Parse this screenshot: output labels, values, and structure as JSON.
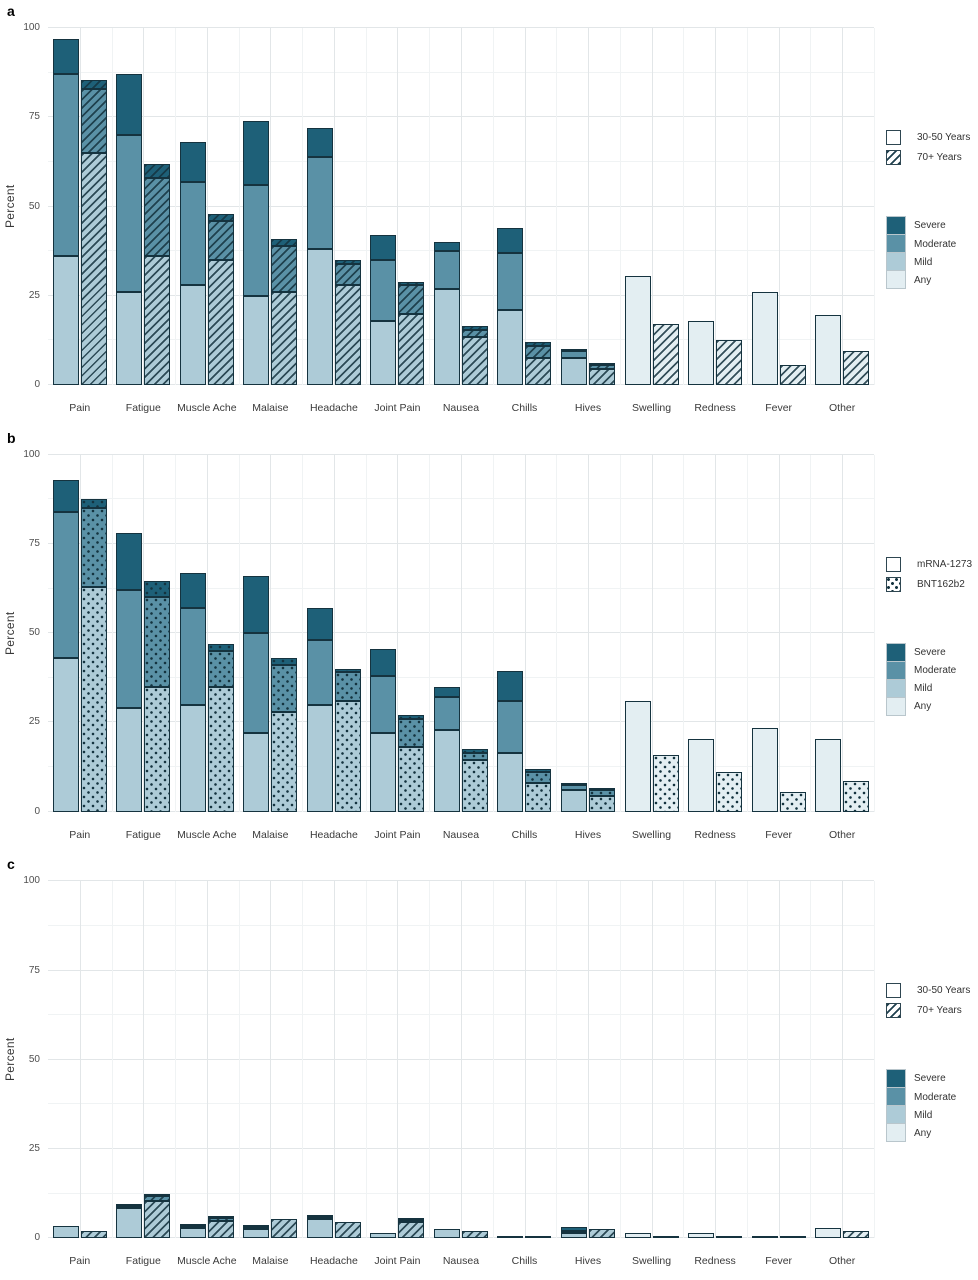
{
  "figure": {
    "colors": {
      "severe": "#1e6078",
      "moderate": "#5a91a6",
      "mild": "#adcbd7",
      "any": "#e3eef2",
      "outline": "#15333f",
      "grid_major": "#e2e6e8",
      "grid_minor": "#f0f3f4"
    }
  },
  "chart_data": [
    {
      "panel": "a",
      "type": "bar",
      "stacked": true,
      "title": "",
      "xlabel": "",
      "ylabel": "Percent",
      "ylim": [
        0,
        100
      ],
      "yticks": [
        0,
        25,
        50,
        75,
        100
      ],
      "grid": true,
      "legend_position": "right",
      "categories": [
        "Pain",
        "Fatigue",
        "Muscle Ache",
        "Malaise",
        "Headache",
        "Joint Pain",
        "Nausea",
        "Chills",
        "Hives",
        "Swelling",
        "Redness",
        "Fever",
        "Other"
      ],
      "severity_levels": [
        {
          "label": "Severe",
          "key": "severe"
        },
        {
          "label": "Moderate",
          "key": "moderate"
        },
        {
          "label": "Mild",
          "key": "mild"
        },
        {
          "label": "Any",
          "key": "any"
        }
      ],
      "series": [
        {
          "name": "30-50 Years",
          "pattern": "plain",
          "bars": [
            {
              "mild": 36,
              "moderate": 87,
              "severe": 97
            },
            {
              "mild": 26,
              "moderate": 70,
              "severe": 87
            },
            {
              "mild": 28,
              "moderate": 57,
              "severe": 68
            },
            {
              "mild": 25,
              "moderate": 56,
              "severe": 74
            },
            {
              "mild": 38,
              "moderate": 64,
              "severe": 72
            },
            {
              "mild": 18,
              "moderate": 35,
              "severe": 42
            },
            {
              "mild": 27,
              "moderate": 37.5,
              "severe": 40
            },
            {
              "mild": 21,
              "moderate": 37,
              "severe": 44
            },
            {
              "mild": 7.5,
              "moderate": 9.5,
              "severe": 10
            },
            {
              "any": 30.5
            },
            {
              "any": 18
            },
            {
              "any": 26
            },
            {
              "any": 19.5
            }
          ]
        },
        {
          "name": "70+ Years",
          "pattern": "hatch",
          "bars": [
            {
              "mild": 65,
              "moderate": 83,
              "severe": 85.5
            },
            {
              "mild": 36,
              "moderate": 58,
              "severe": 62
            },
            {
              "mild": 35,
              "moderate": 46,
              "severe": 48
            },
            {
              "mild": 26,
              "moderate": 39,
              "severe": 41
            },
            {
              "mild": 28,
              "moderate": 34,
              "severe": 35
            },
            {
              "mild": 20,
              "moderate": 28,
              "severe": 29
            },
            {
              "mild": 13.5,
              "moderate": 15.5,
              "severe": 16.5
            },
            {
              "mild": 7.5,
              "moderate": 11,
              "severe": 12
            },
            {
              "mild": 4.5,
              "moderate": 5.5,
              "severe": 6
            },
            {
              "any": 17
            },
            {
              "any": 12.5
            },
            {
              "any": 5.5
            },
            {
              "any": 9.5
            }
          ]
        }
      ]
    },
    {
      "panel": "b",
      "type": "bar",
      "stacked": true,
      "title": "",
      "xlabel": "",
      "ylabel": "Percent",
      "ylim": [
        0,
        100
      ],
      "yticks": [
        0,
        25,
        50,
        75,
        100
      ],
      "grid": true,
      "legend_position": "right",
      "categories": [
        "Pain",
        "Fatigue",
        "Muscle Ache",
        "Malaise",
        "Headache",
        "Joint Pain",
        "Nausea",
        "Chills",
        "Hives",
        "Swelling",
        "Redness",
        "Fever",
        "Other"
      ],
      "severity_levels": [
        {
          "label": "Severe",
          "key": "severe"
        },
        {
          "label": "Moderate",
          "key": "moderate"
        },
        {
          "label": "Mild",
          "key": "mild"
        },
        {
          "label": "Any",
          "key": "any"
        }
      ],
      "series": [
        {
          "name": "mRNA-1273",
          "pattern": "plain",
          "bars": [
            {
              "mild": 43,
              "moderate": 84,
              "severe": 93
            },
            {
              "mild": 29,
              "moderate": 62,
              "severe": 78
            },
            {
              "mild": 30,
              "moderate": 57,
              "severe": 67
            },
            {
              "mild": 22,
              "moderate": 50,
              "severe": 66
            },
            {
              "mild": 30,
              "moderate": 48,
              "severe": 57
            },
            {
              "mild": 22,
              "moderate": 38,
              "severe": 45.5
            },
            {
              "mild": 23,
              "moderate": 32,
              "severe": 35
            },
            {
              "mild": 16.5,
              "moderate": 31,
              "severe": 39.5
            },
            {
              "mild": 6,
              "moderate": 7.5,
              "severe": 8
            },
            {
              "any": 31
            },
            {
              "any": 20.5
            },
            {
              "any": 23.5
            },
            {
              "any": 20.5
            }
          ]
        },
        {
          "name": "BNT162b2",
          "pattern": "dots",
          "bars": [
            {
              "mild": 63,
              "moderate": 85,
              "severe": 87.5
            },
            {
              "mild": 35,
              "moderate": 60,
              "severe": 64.5
            },
            {
              "mild": 35,
              "moderate": 45,
              "severe": 47
            },
            {
              "mild": 28,
              "moderate": 41,
              "severe": 43
            },
            {
              "mild": 31,
              "moderate": 39,
              "severe": 40
            },
            {
              "mild": 18,
              "moderate": 26,
              "severe": 27
            },
            {
              "mild": 14.5,
              "moderate": 16.5,
              "severe": 17.5
            },
            {
              "mild": 8,
              "moderate": 11,
              "severe": 12
            },
            {
              "mild": 4.5,
              "moderate": 6,
              "severe": 6.5
            },
            {
              "any": 16
            },
            {
              "any": 11
            },
            {
              "any": 5.5
            },
            {
              "any": 8.5
            }
          ]
        }
      ]
    },
    {
      "panel": "c",
      "type": "bar",
      "stacked": true,
      "title": "",
      "xlabel": "",
      "ylabel": "Percent",
      "ylim": [
        0,
        100
      ],
      "yticks": [
        0,
        25,
        50,
        75,
        100
      ],
      "grid": true,
      "legend_position": "right",
      "categories": [
        "Pain",
        "Fatigue",
        "Muscle Ache",
        "Malaise",
        "Headache",
        "Joint Pain",
        "Nausea",
        "Chills",
        "Hives",
        "Swelling",
        "Redness",
        "Fever",
        "Other"
      ],
      "severity_levels": [
        {
          "label": "Severe",
          "key": "severe"
        },
        {
          "label": "Moderate",
          "key": "moderate"
        },
        {
          "label": "Mild",
          "key": "mild"
        },
        {
          "label": "Any",
          "key": "any"
        }
      ],
      "series": [
        {
          "name": "30-50 Years",
          "pattern": "plain",
          "bars": [
            {
              "mild": 3.5
            },
            {
              "mild": 8.5,
              "moderate": 9,
              "severe": 9.5
            },
            {
              "mild": 3,
              "moderate": 3.3,
              "severe": 3.8
            },
            {
              "mild": 2.5,
              "moderate": 2.8,
              "severe": 3.2
            },
            {
              "mild": 5.5,
              "moderate": 6,
              "severe": 6.5
            },
            {
              "mild": 1.5
            },
            {
              "mild": 2.5
            },
            {
              "mild": 0.8
            },
            {
              "mild": 1.5,
              "moderate": 2,
              "severe": 3
            },
            {
              "any": 1.5
            },
            {
              "any": 1.5
            },
            {
              "any": 0.3
            },
            {
              "any": 2.8
            }
          ]
        },
        {
          "name": "70+ Years",
          "pattern": "hatch",
          "bars": [
            {
              "mild": 2
            },
            {
              "mild": 10.5,
              "moderate": 12,
              "severe": 12.5
            },
            {
              "mild": 5,
              "moderate": 5.7,
              "severe": 6
            },
            {
              "mild": 5.5
            },
            {
              "mild": 4.5
            },
            {
              "mild": 4.5,
              "moderate": 5.2,
              "severe": 5.5
            },
            {
              "mild": 2
            },
            {
              "mild": 0.4
            },
            {
              "mild": 2.5
            },
            {
              "any": 0.8
            },
            {
              "any": 0.8
            },
            {
              "any": 0.5
            },
            {
              "any": 2.2
            }
          ]
        }
      ]
    }
  ]
}
